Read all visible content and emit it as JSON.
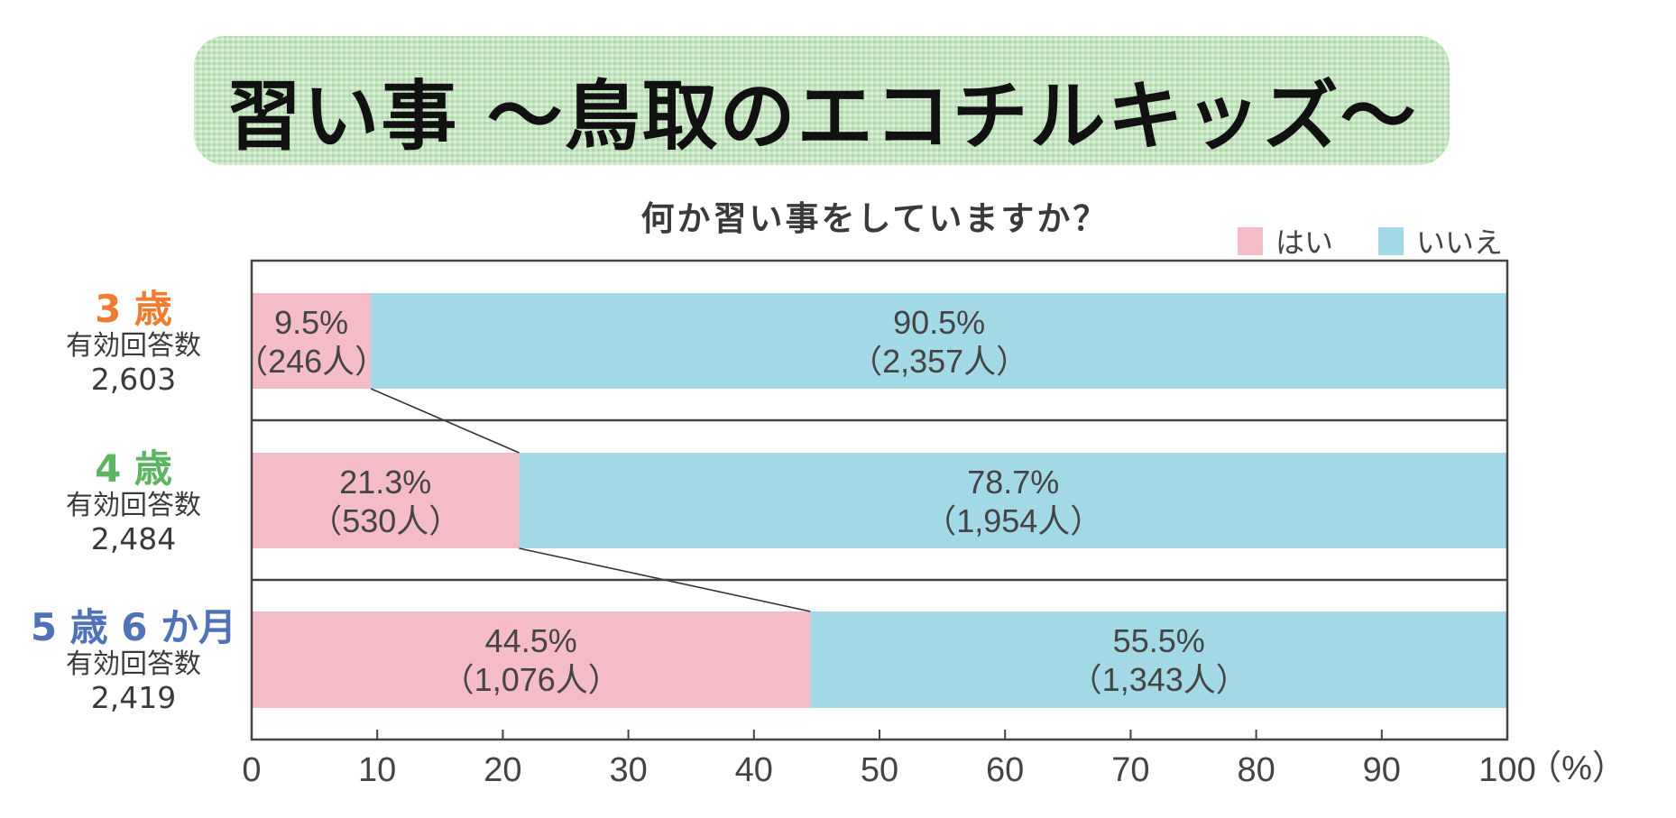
{
  "banner": {
    "title": "習い事 ～鳥取のエコチルキッズ～"
  },
  "chart_data": {
    "type": "bar",
    "orientation": "horizontal-stacked-100",
    "title": "何か習い事をしていますか？",
    "xlabel": "（%）",
    "xlim": [
      0,
      100
    ],
    "xticks": [
      "0",
      "10",
      "20",
      "30",
      "40",
      "50",
      "60",
      "70",
      "80",
      "90",
      "100"
    ],
    "legend": {
      "placement": "top-right",
      "items": [
        {
          "name": "はい",
          "color": "#f4bcc6"
        },
        {
          "name": "いいえ",
          "color": "#a3d8e6"
        }
      ]
    },
    "categories": [
      {
        "age": "3 歳",
        "age_color": "#ef7d31",
        "sub": "有効回答数",
        "n": "2,603"
      },
      {
        "age": "4 歳",
        "age_color": "#5cb560",
        "sub": "有効回答数",
        "n": "2,484"
      },
      {
        "age": "5 歳 6 か月",
        "age_color": "#4f72b8",
        "sub": "有効回答数",
        "n": "2,419"
      }
    ],
    "series": [
      {
        "name": "はい",
        "values": [
          9.5,
          21.3,
          44.5
        ],
        "labels": [
          "9.5%",
          "21.3%",
          "44.5%"
        ],
        "counts": [
          "（246人）",
          "（530人）",
          "（1,076人）"
        ]
      },
      {
        "name": "いいえ",
        "values": [
          90.5,
          78.7,
          55.5
        ],
        "labels": [
          "90.5%",
          "78.7%",
          "55.5%"
        ],
        "counts": [
          "（2,357人）",
          "（1,954人）",
          "（1,343人）"
        ]
      }
    ]
  }
}
